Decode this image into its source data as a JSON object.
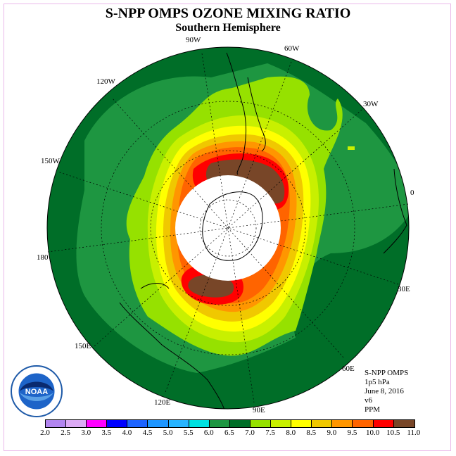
{
  "title": "S-NPP OMPS OZONE MIXING RATIO",
  "subtitle": "Southern Hemisphere",
  "longitude_labels": {
    "w90": "90W",
    "w60": "60W",
    "w120": "120W",
    "w30": "30W",
    "w150": "150W",
    "zero": "0",
    "d180": "180",
    "e30": "30E",
    "e150": "150E",
    "e60": "60E",
    "e120": "120E",
    "e90": "90E"
  },
  "info": {
    "line1": "S-NPP OMPS",
    "line2": "1p5 hPa",
    "line3": "June 8, 2016",
    "line4": "v6",
    "line5": "PPM"
  },
  "logo_text": "NOAA",
  "colorbar": {
    "labels": [
      "2.0",
      "2.5",
      "3.0",
      "3.5",
      "4.0",
      "4.5",
      "5.0",
      "5.5",
      "6.0",
      "6.5",
      "7.0",
      "7.5",
      "8.0",
      "8.5",
      "9.0",
      "9.5",
      "10.0",
      "10.5",
      "11.0"
    ],
    "colors": [
      "#b285f0",
      "#dcaaf5",
      "#ff00ff",
      "#0000ff",
      "#1e64ff",
      "#1e96ff",
      "#28b4ff",
      "#00e1e1",
      "#1e9641",
      "#006e28",
      "#96e100",
      "#c8f000",
      "#ffff00",
      "#f0c800",
      "#ff9600",
      "#ff6400",
      "#ff0000",
      "#784628"
    ]
  },
  "map_colors": {
    "level_6_0_to_6_5": "#1e9641",
    "level_6_5_to_7_0": "#006e28",
    "level_7_0_to_7_5": "#96e100",
    "level_7_5_to_8_0": "#c8f000",
    "level_8_0_to_8_5": "#ffff00",
    "level_8_5_to_9_0": "#f0c800",
    "level_9_0_to_9_5": "#ff9600",
    "level_9_5_to_10_0": "#ff6400",
    "level_10_0_to_10_5": "#ff0000",
    "level_10_5_to_11_0": "#784628"
  }
}
